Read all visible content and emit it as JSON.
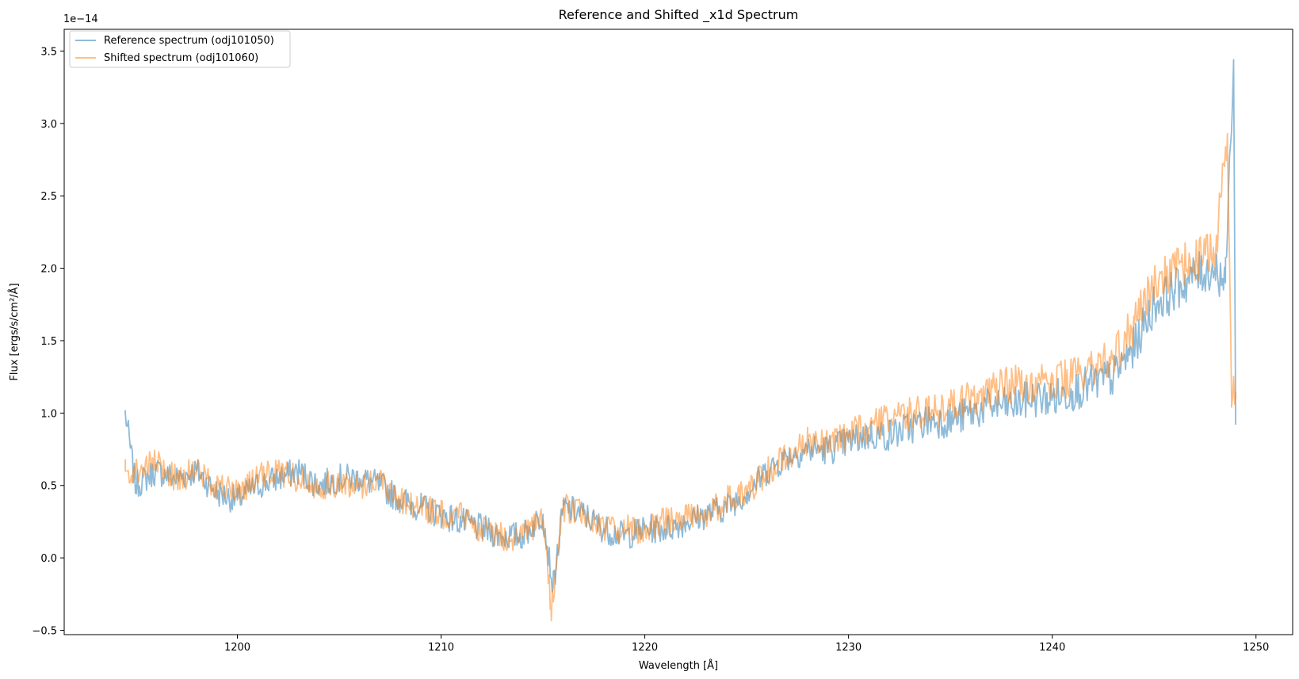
{
  "chart_data": {
    "type": "line",
    "title": "Reference and Shifted _x1d Spectrum",
    "xlabel": "Wavelength [Å]",
    "ylabel": "Flux [ergs/s/cm²/Å]",
    "offset_text": "1e−14",
    "xlim": [
      1191.5,
      1251.8
    ],
    "ylim": [
      -0.53,
      3.65
    ],
    "x_ticks": [
      1200,
      1210,
      1220,
      1230,
      1240,
      1250
    ],
    "y_ticks": [
      -0.5,
      0.0,
      0.5,
      1.0,
      1.5,
      2.0,
      2.5,
      3.0,
      3.5
    ],
    "x_tick_labels": [
      "1200",
      "1210",
      "1220",
      "1230",
      "1240",
      "1250"
    ],
    "y_tick_labels": [
      "−0.5",
      "0.0",
      "0.5",
      "1.0",
      "1.5",
      "2.0",
      "2.5",
      "3.0",
      "3.5"
    ],
    "legend_position": "upper-left",
    "grid": false,
    "series": [
      {
        "name": "Reference spectrum (odj101050)",
        "color": "#1f77b4",
        "alpha": 0.5,
        "x": [
          1194.5,
          1195.0,
          1196.0,
          1197.0,
          1198.0,
          1199.0,
          1200.0,
          1201.0,
          1202.0,
          1203.0,
          1204.0,
          1205.0,
          1206.0,
          1207.0,
          1208.0,
          1209.0,
          1210.0,
          1211.0,
          1212.0,
          1213.0,
          1214.0,
          1215.0,
          1215.5,
          1216.0,
          1217.0,
          1218.0,
          1219.0,
          1220.0,
          1221.0,
          1222.0,
          1223.0,
          1224.0,
          1225.0,
          1226.0,
          1227.0,
          1228.0,
          1229.0,
          1230.0,
          1231.0,
          1232.0,
          1233.0,
          1234.0,
          1235.0,
          1236.0,
          1237.0,
          1238.0,
          1239.0,
          1240.0,
          1241.0,
          1242.0,
          1243.0,
          1244.0,
          1245.0,
          1246.0,
          1247.0,
          1248.0,
          1248.5,
          1248.9,
          1249.0
        ],
        "y": [
          1.0,
          0.5,
          0.6,
          0.55,
          0.6,
          0.45,
          0.4,
          0.5,
          0.55,
          0.6,
          0.5,
          0.55,
          0.55,
          0.5,
          0.4,
          0.35,
          0.3,
          0.25,
          0.2,
          0.15,
          0.15,
          0.3,
          -0.2,
          0.35,
          0.3,
          0.2,
          0.15,
          0.2,
          0.2,
          0.25,
          0.3,
          0.35,
          0.45,
          0.6,
          0.7,
          0.75,
          0.75,
          0.8,
          0.85,
          0.85,
          0.9,
          0.95,
          0.95,
          1.0,
          1.05,
          1.05,
          1.1,
          1.1,
          1.15,
          1.2,
          1.25,
          1.45,
          1.75,
          1.85,
          1.95,
          2.0,
          1.9,
          3.44,
          0.92
        ]
      },
      {
        "name": "Shifted spectrum (odj101060)",
        "color": "#ff7f0e",
        "alpha": 0.5,
        "x": [
          1194.5,
          1195.0,
          1196.0,
          1197.0,
          1198.0,
          1199.0,
          1200.0,
          1201.0,
          1202.0,
          1203.0,
          1204.0,
          1205.0,
          1206.0,
          1207.0,
          1208.0,
          1209.0,
          1210.0,
          1211.0,
          1212.0,
          1213.0,
          1214.0,
          1215.0,
          1215.4,
          1216.0,
          1217.0,
          1218.0,
          1219.0,
          1220.0,
          1221.0,
          1222.0,
          1223.0,
          1224.0,
          1225.0,
          1226.0,
          1227.0,
          1228.0,
          1229.0,
          1230.0,
          1231.0,
          1232.0,
          1233.0,
          1234.0,
          1235.0,
          1236.0,
          1237.0,
          1238.0,
          1239.0,
          1240.0,
          1241.0,
          1242.0,
          1243.0,
          1244.0,
          1245.0,
          1246.0,
          1247.0,
          1248.0,
          1248.6,
          1248.8,
          1249.0
        ],
        "y": [
          0.6,
          0.6,
          0.65,
          0.55,
          0.6,
          0.5,
          0.45,
          0.55,
          0.6,
          0.55,
          0.5,
          0.5,
          0.5,
          0.55,
          0.4,
          0.35,
          0.3,
          0.3,
          0.2,
          0.15,
          0.15,
          0.25,
          -0.35,
          0.35,
          0.3,
          0.2,
          0.2,
          0.2,
          0.25,
          0.3,
          0.3,
          0.4,
          0.45,
          0.6,
          0.7,
          0.8,
          0.8,
          0.85,
          0.9,
          0.95,
          1.0,
          1.0,
          1.05,
          1.1,
          1.15,
          1.2,
          1.2,
          1.2,
          1.25,
          1.3,
          1.4,
          1.6,
          1.9,
          2.0,
          2.05,
          2.1,
          2.93,
          1.1,
          1.1
        ]
      }
    ]
  }
}
